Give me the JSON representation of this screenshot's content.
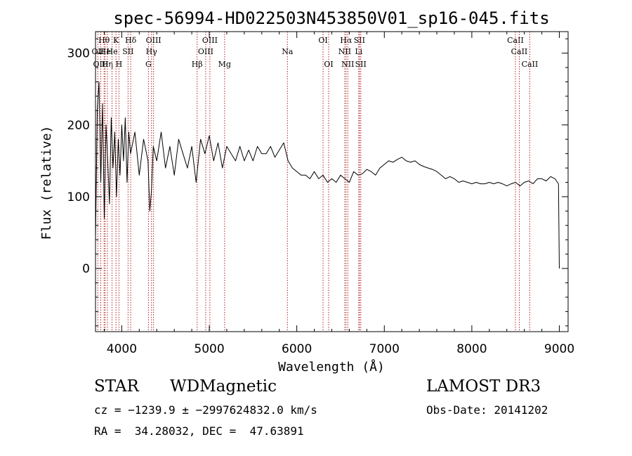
{
  "chart_data": {
    "type": "line",
    "title": "spec-56994-HD022503N453850V01_sp16-045.fits",
    "xlabel": "Wavelength (Å)",
    "ylabel": "Flux (relative)",
    "xlim": [
      3700,
      9100
    ],
    "ylim": [
      -88,
      330
    ],
    "xticks": [
      4000,
      5000,
      6000,
      7000,
      8000,
      9000
    ],
    "yticks": [
      0,
      100,
      200,
      300
    ],
    "series": [
      {
        "name": "spectrum",
        "x": [
          3700,
          3720,
          3740,
          3760,
          3780,
          3800,
          3820,
          3840,
          3860,
          3880,
          3900,
          3920,
          3940,
          3960,
          3980,
          4000,
          4020,
          4040,
          4060,
          4080,
          4100,
          4150,
          4200,
          4250,
          4300,
          4320,
          4340,
          4360,
          4400,
          4450,
          4500,
          4550,
          4600,
          4650,
          4700,
          4750,
          4800,
          4850,
          4900,
          4950,
          5000,
          5050,
          5100,
          5150,
          5200,
          5250,
          5300,
          5350,
          5400,
          5450,
          5500,
          5550,
          5600,
          5650,
          5700,
          5750,
          5800,
          5850,
          5900,
          5950,
          6000,
          6050,
          6100,
          6150,
          6200,
          6250,
          6300,
          6350,
          6400,
          6450,
          6500,
          6550,
          6600,
          6650,
          6700,
          6750,
          6800,
          6850,
          6900,
          6950,
          7000,
          7050,
          7100,
          7150,
          7200,
          7250,
          7300,
          7350,
          7400,
          7450,
          7500,
          7550,
          7600,
          7650,
          7700,
          7750,
          7800,
          7850,
          7900,
          7950,
          8000,
          8050,
          8100,
          8150,
          8200,
          8250,
          8300,
          8350,
          8400,
          8450,
          8500,
          8550,
          8600,
          8650,
          8700,
          8750,
          8800,
          8850,
          8900,
          8950,
          8990,
          9000
        ],
        "values": [
          40,
          220,
          260,
          120,
          230,
          70,
          200,
          150,
          90,
          210,
          140,
          190,
          100,
          180,
          130,
          200,
          150,
          210,
          120,
          190,
          160,
          190,
          130,
          180,
          150,
          80,
          110,
          170,
          150,
          190,
          140,
          170,
          130,
          180,
          160,
          140,
          170,
          120,
          180,
          160,
          185,
          150,
          175,
          140,
          170,
          160,
          150,
          170,
          150,
          165,
          150,
          170,
          160,
          160,
          170,
          155,
          165,
          175,
          150,
          140,
          135,
          130,
          130,
          125,
          135,
          125,
          130,
          120,
          125,
          120,
          130,
          125,
          120,
          135,
          130,
          132,
          138,
          135,
          130,
          140,
          145,
          150,
          148,
          152,
          155,
          150,
          148,
          150,
          145,
          142,
          140,
          138,
          135,
          130,
          125,
          128,
          125,
          120,
          122,
          120,
          118,
          120,
          118,
          118,
          120,
          118,
          120,
          118,
          115,
          118,
          120,
          115,
          120,
          122,
          118,
          125,
          125,
          122,
          128,
          125,
          118,
          0
        ]
      }
    ],
    "lines": [
      {
        "label": "Hθ",
        "x": 3798,
        "row": 1
      },
      {
        "label": "OII",
        "x": 3727,
        "row": 2
      },
      {
        "label": "OIII",
        "x": 3760,
        "row": 3
      },
      {
        "label": "He",
        "x": 3810,
        "row": 2
      },
      {
        "label": "Hη",
        "x": 3835,
        "row": 3
      },
      {
        "label": "K",
        "x": 3934,
        "row": 1
      },
      {
        "label": "H",
        "x": 3968,
        "row": 3
      },
      {
        "label": "He",
        "x": 3889,
        "row": 2
      },
      {
        "label": "SII",
        "x": 4072,
        "row": 2
      },
      {
        "label": "Hδ",
        "x": 4102,
        "row": 1
      },
      {
        "label": "OIII",
        "x": 4363,
        "row": 1
      },
      {
        "label": "Hγ",
        "x": 4340,
        "row": 2
      },
      {
        "label": "G",
        "x": 4305,
        "row": 3
      },
      {
        "label": "Hβ",
        "x": 4861,
        "row": 3
      },
      {
        "label": "OIII",
        "x": 5007,
        "row": 1
      },
      {
        "label": "OIII",
        "x": 4959,
        "row": 2
      },
      {
        "label": "Mg",
        "x": 5175,
        "row": 3
      },
      {
        "label": "Na",
        "x": 5893,
        "row": 2
      },
      {
        "label": "OI",
        "x": 6300,
        "row": 1
      },
      {
        "label": "OI",
        "x": 6364,
        "row": 3
      },
      {
        "label": "Hα",
        "x": 6563,
        "row": 1
      },
      {
        "label": "NII",
        "x": 6548,
        "row": 2
      },
      {
        "label": "NII",
        "x": 6583,
        "row": 3
      },
      {
        "label": "SII",
        "x": 6716,
        "row": 1
      },
      {
        "label": "Li",
        "x": 6708,
        "row": 2
      },
      {
        "label": "SII",
        "x": 6731,
        "row": 3
      },
      {
        "label": "CaII",
        "x": 8498,
        "row": 1
      },
      {
        "label": "CaII",
        "x": 8542,
        "row": 2
      },
      {
        "label": "CaII",
        "x": 8662,
        "row": 3
      }
    ]
  },
  "info": {
    "class": "STAR",
    "subclass": "WDMagnetic",
    "survey": "LAMOST DR3",
    "cz": "cz = −1239.9 ± −2997624832.0 km/s",
    "obs_date": "Obs-Date: 20141202",
    "radec": "RA =  34.28032, DEC =  47.63891"
  }
}
